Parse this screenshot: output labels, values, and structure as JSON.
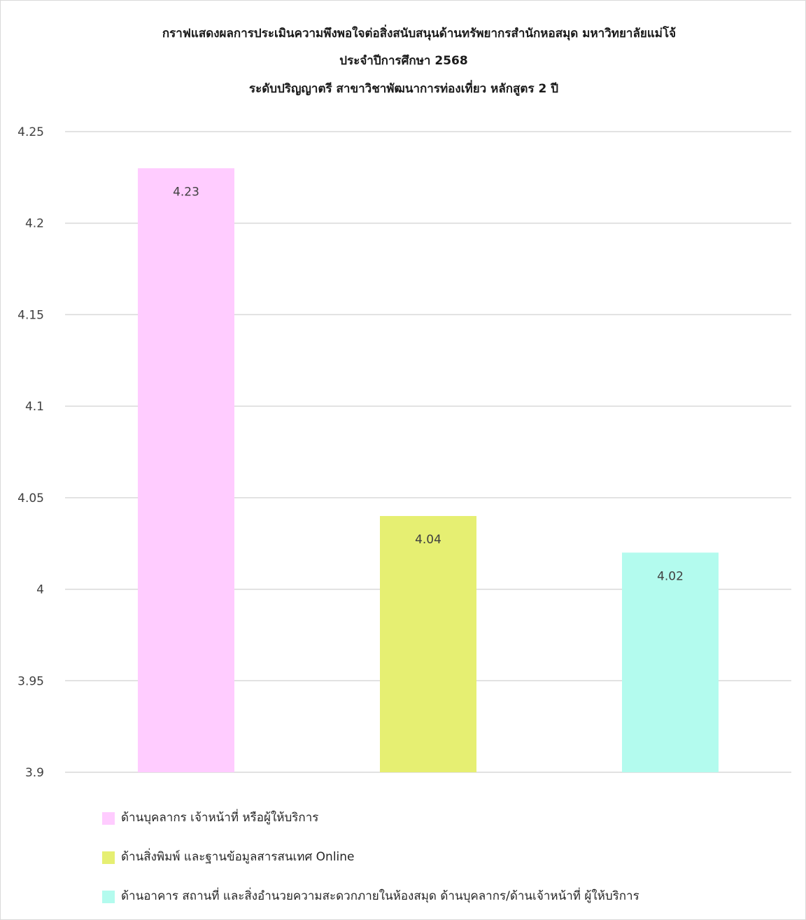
{
  "chart_data": {
    "type": "bar",
    "title_lines": [
      "กราฟแสดงผลการประเมินความพึงพอใจต่อสิ่งสนับสนุนด้านทรัพยากรสำนักหอสมุด มหาวิทยาลัยแม่โจ้",
      "ประจำปีการศึกษา 2568",
      "ระดับปริญญาตรี สาขาวิชาพัฒนาการท่องเที่ยว หลักสูตร 2 ปี"
    ],
    "ylim": [
      3.9,
      4.25
    ],
    "yticks": [
      "4.25",
      "4.2",
      "4.15",
      "4.1",
      "4.05",
      "4",
      "3.95",
      "3.9"
    ],
    "grid": true,
    "legend_position": "bottom",
    "series": [
      {
        "name": "ด้านบุคลากร เจ้าหน้าที่ หรือผู้ให้บริการ",
        "value": 4.23,
        "label": "4.23",
        "color": "#ffccff"
      },
      {
        "name": "ด้านสิ่งพิมพ์ และฐานข้อมูลสารสนเทศ Online",
        "value": 4.04,
        "label": "4.04",
        "color": "#e6ef72"
      },
      {
        "name": "ด้านอาคาร สถานที่ และสิ่งอำนวยความสะดวกภายในห้องสมุด ด้านบุคลากร/ด้านเจ้าหน้าที่ ผู้ให้บริการ",
        "value": 4.02,
        "label": "4.02",
        "color": "#b3fbee"
      }
    ]
  }
}
